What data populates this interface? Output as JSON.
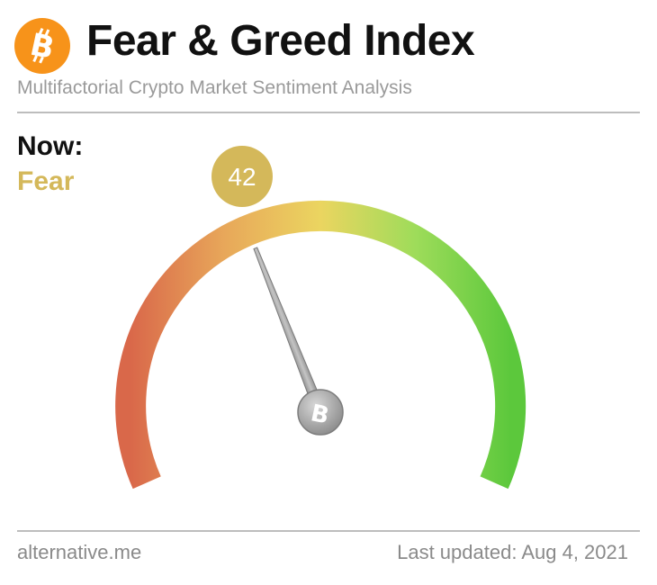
{
  "header": {
    "title": "Fear & Greed Index",
    "subtitle": "Multifactorial Crypto Market Sentiment Analysis",
    "logo_icon": "bitcoin-icon",
    "logo_color": "#f7931a"
  },
  "status": {
    "now_label": "Now:",
    "classification": "Fear",
    "classification_color": "#d4b85a"
  },
  "gauge": {
    "value": 42,
    "min": 0,
    "max": 100,
    "value_badge_color": "#d4b85a",
    "gradient_colors": [
      "#d9684a",
      "#e8a85a",
      "#ebd560",
      "#9edc5a",
      "#5cc83c"
    ],
    "hub_icon": "bitcoin-icon"
  },
  "footer": {
    "source": "alternative.me",
    "last_updated": "Last updated: Aug 4, 2021"
  }
}
